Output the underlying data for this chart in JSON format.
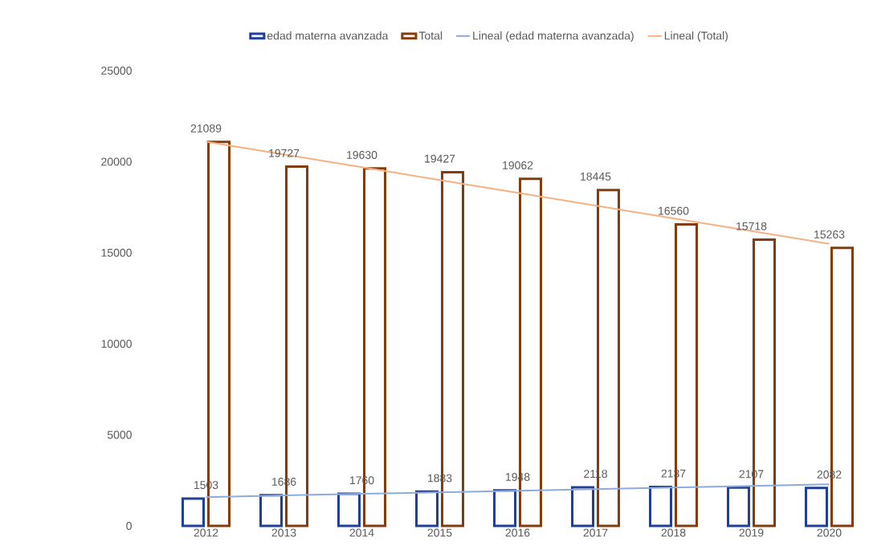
{
  "chart_data": {
    "type": "bar",
    "categories": [
      "2012",
      "2013",
      "2014",
      "2015",
      "2016",
      "2017",
      "2018",
      "2019",
      "2020"
    ],
    "ylim": [
      0,
      25000
    ],
    "yticks": [
      0,
      5000,
      10000,
      15000,
      20000,
      25000
    ],
    "legend": "top",
    "grid": false,
    "series": [
      {
        "name": "edad materna avanzada",
        "color": "#1f3f99",
        "data_labels": true,
        "values": [
          1503,
          1686,
          1760,
          1883,
          1948,
          2118,
          2137,
          2107,
          2082
        ]
      },
      {
        "name": "Total",
        "color": "#843c0c",
        "data_labels": true,
        "values": [
          21089,
          19727,
          19630,
          19427,
          19062,
          18445,
          16560,
          15718,
          15263
        ]
      },
      {
        "name": "Lineal (edad materna avanzada)",
        "type": "line",
        "color": "#8faadc",
        "values": [
          1580,
          1670,
          1760,
          1840,
          1930,
          2020,
          2110,
          2190,
          2280
        ]
      },
      {
        "name": "Lineal (Total)",
        "type": "line",
        "color": "#f4b183",
        "values": [
          21100,
          20400,
          19700,
          18990,
          18290,
          17590,
          16890,
          16190,
          15490
        ]
      }
    ]
  }
}
